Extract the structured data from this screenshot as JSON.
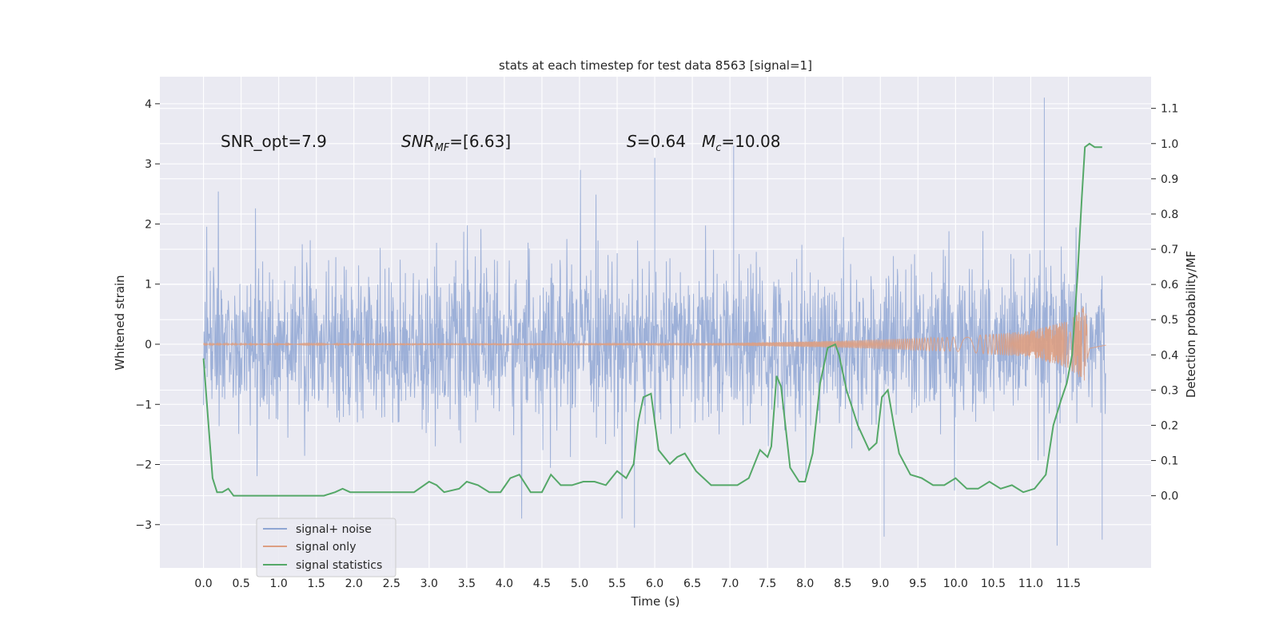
{
  "chart_data": {
    "type": "line",
    "title": "stats at each timestep for test data 8563 [signal=1]",
    "xlabel": "Time (s)",
    "ylabel_left": "Whitened strain",
    "ylabel_right": "Detection probability/MF",
    "xlim": [
      -0.58,
      12.6
    ],
    "ylim_left": [
      -3.72,
      4.45
    ],
    "ylim_right": [
      -0.205,
      1.19
    ],
    "x_ticks": [
      "0.0",
      "0.5",
      "1.0",
      "1.5",
      "2.0",
      "2.5",
      "3.0",
      "3.5",
      "4.0",
      "4.5",
      "5.0",
      "5.5",
      "6.0",
      "6.5",
      "7.0",
      "7.5",
      "8.0",
      "8.5",
      "9.0",
      "9.5",
      "10.0",
      "10.5",
      "11.0",
      "11.5"
    ],
    "y_ticks_left": [
      "−3",
      "−2",
      "−1",
      "0",
      "1",
      "2",
      "3",
      "4"
    ],
    "y_ticks_right": [
      "0.0",
      "0.1",
      "0.2",
      "0.3",
      "0.4",
      "0.5",
      "0.6",
      "0.7",
      "0.8",
      "0.9",
      "1.0",
      "1.1"
    ],
    "grid": true,
    "legend_placement": "lower-left",
    "annotations": {
      "snr_opt": "SNR_opt=7.9",
      "snr_mf_main": "SNR",
      "snr_mf_sub": "MF",
      "snr_mf_rest": "=[6.63]",
      "s_label": "S",
      "s_value": "=0.64",
      "mc_label": "M",
      "mc_sub": "c",
      "mc_value": "=10.08"
    },
    "series": [
      {
        "name": "signal+ noise",
        "color": "#8fa6d3",
        "axis": "left",
        "description_kind": "noise band",
        "t_range": [
          0.0,
          12.0
        ],
        "envelope_typical": [
          -1.5,
          1.5
        ],
        "notable_peaks": [
          [
            11.18,
            4.1
          ],
          [
            7.05,
            3.3
          ],
          [
            6.0,
            3.1
          ],
          [
            5.73,
            -3.05
          ],
          [
            11.35,
            -3.35
          ],
          [
            9.05,
            -3.2
          ],
          [
            11.95,
            -3.25
          ]
        ]
      },
      {
        "name": "signal only",
        "color": "#dd9f82",
        "axis": "left",
        "description_kind": "chirp",
        "t_range": [
          0.0,
          12.0
        ],
        "amplitude": [
          [
            0.0,
            0.01
          ],
          [
            7.0,
            0.02
          ],
          [
            8.5,
            0.06
          ],
          [
            10.0,
            0.12
          ],
          [
            11.0,
            0.22
          ],
          [
            11.5,
            0.4
          ],
          [
            11.72,
            0.65
          ],
          [
            11.78,
            0.1
          ],
          [
            12.0,
            0.02
          ]
        ]
      },
      {
        "name": "signal statistics",
        "color": "#55a868",
        "axis": "right",
        "x": [
          0.0,
          0.06,
          0.12,
          0.18,
          0.25,
          0.33,
          0.4,
          0.5,
          0.6,
          0.75,
          0.9,
          1.0,
          1.2,
          1.4,
          1.6,
          1.75,
          1.85,
          1.95,
          2.05,
          2.2,
          2.4,
          2.6,
          2.8,
          3.0,
          3.1,
          3.2,
          3.4,
          3.5,
          3.65,
          3.8,
          3.95,
          4.08,
          4.2,
          4.35,
          4.5,
          4.62,
          4.75,
          4.9,
          5.05,
          5.2,
          5.35,
          5.5,
          5.62,
          5.72,
          5.78,
          5.85,
          5.95,
          6.05,
          6.2,
          6.3,
          6.4,
          6.55,
          6.75,
          6.95,
          7.1,
          7.25,
          7.4,
          7.5,
          7.55,
          7.62,
          7.68,
          7.8,
          7.92,
          8.0,
          8.1,
          8.2,
          8.3,
          8.4,
          8.45,
          8.55,
          8.7,
          8.85,
          8.95,
          9.02,
          9.1,
          9.18,
          9.25,
          9.4,
          9.55,
          9.7,
          9.85,
          10.0,
          10.15,
          10.3,
          10.45,
          10.6,
          10.75,
          10.9,
          11.05,
          11.2,
          11.3,
          11.4,
          11.48,
          11.55,
          11.62,
          11.68,
          11.72,
          11.78,
          11.85,
          11.95
        ],
        "y": [
          0.39,
          0.22,
          0.05,
          0.01,
          0.01,
          0.02,
          0.0,
          0.0,
          0.0,
          0.0,
          0.0,
          0.0,
          0.0,
          0.0,
          0.0,
          0.01,
          0.02,
          0.01,
          0.01,
          0.01,
          0.01,
          0.01,
          0.01,
          0.04,
          0.03,
          0.01,
          0.02,
          0.04,
          0.03,
          0.01,
          0.01,
          0.05,
          0.06,
          0.01,
          0.01,
          0.06,
          0.03,
          0.03,
          0.04,
          0.04,
          0.03,
          0.07,
          0.05,
          0.09,
          0.21,
          0.28,
          0.29,
          0.13,
          0.09,
          0.11,
          0.12,
          0.07,
          0.03,
          0.03,
          0.03,
          0.05,
          0.13,
          0.11,
          0.14,
          0.34,
          0.31,
          0.08,
          0.04,
          0.04,
          0.12,
          0.32,
          0.42,
          0.43,
          0.4,
          0.3,
          0.2,
          0.13,
          0.15,
          0.28,
          0.3,
          0.2,
          0.12,
          0.06,
          0.05,
          0.03,
          0.03,
          0.05,
          0.02,
          0.02,
          0.04,
          0.02,
          0.03,
          0.01,
          0.02,
          0.06,
          0.2,
          0.27,
          0.32,
          0.4,
          0.62,
          0.85,
          0.99,
          1.0,
          0.99,
          0.99
        ]
      }
    ]
  }
}
